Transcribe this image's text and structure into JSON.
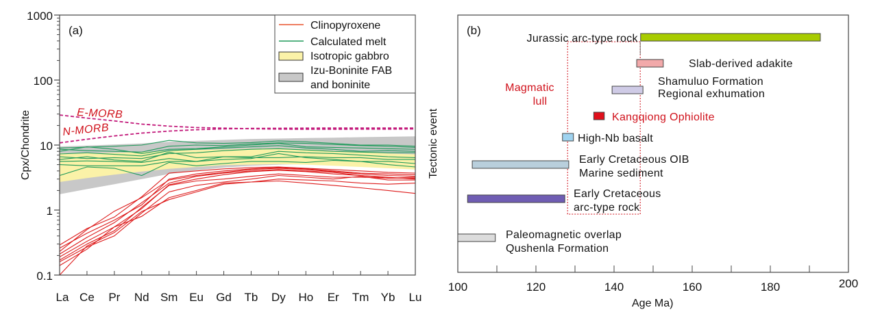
{
  "chart_data": [
    {
      "id": "a",
      "type": "line",
      "panel_label": "(a)",
      "title": "",
      "xlabel": "",
      "ylabel": "Cpx/Chondrite",
      "yscale": "log",
      "ylim": [
        0.1,
        1000
      ],
      "yticks": [
        0.1,
        1,
        10,
        100,
        1000
      ],
      "ytick_labels": [
        "0.1",
        "1",
        "10",
        "100",
        "1000"
      ],
      "grid": false,
      "legend_position": "top-right",
      "categories": [
        "La",
        "Ce",
        "Pr",
        "Nd",
        "Sm",
        "Eu",
        "Gd",
        "Tb",
        "Dy",
        "Ho",
        "Er",
        "Tm",
        "Yb",
        "Lu"
      ],
      "legend": [
        {
          "label": "Clinopyroxene",
          "kind": "line",
          "color": "#e8502a"
        },
        {
          "label": "Calculated melt",
          "kind": "line",
          "color": "#1e9a5a"
        },
        {
          "label": "Isotropic gabbro",
          "kind": "box",
          "color": "#fbf2a8"
        },
        {
          "label": "Izu-Boninite FAB",
          "label2": "and boninite",
          "kind": "box",
          "color": "#c8c8c8"
        }
      ],
      "bands": [
        {
          "name": "Izu-Boninite FAB and boninite",
          "color": "#c8c8c8",
          "upper": [
            9.5,
            9.8,
            10.2,
            10.6,
            11.2,
            11.6,
            12.0,
            12.4,
            12.6,
            12.8,
            13.0,
            13.2,
            13.4,
            13.6
          ],
          "lower": [
            1.75,
            2.1,
            2.5,
            3.0,
            3.6,
            4.1,
            4.5,
            4.8,
            5.0,
            5.1,
            5.1,
            5.1,
            5.1,
            5.1
          ]
        },
        {
          "name": "Isotropic gabbro",
          "color": "#fbf2a8",
          "upper": [
            7.5,
            7.5,
            7.6,
            7.8,
            8.2,
            8.4,
            8.6,
            8.8,
            9.0,
            8.6,
            8.2,
            7.8,
            7.4,
            7.2
          ],
          "lower": [
            2.7,
            3.1,
            3.5,
            3.9,
            4.3,
            4.6,
            4.9,
            5.0,
            5.1,
            5.0,
            4.8,
            4.6,
            4.4,
            4.2
          ]
        }
      ],
      "reference_lines": [
        {
          "name": "E-MORB",
          "color": "#c2187a",
          "dashed": true,
          "values": [
            29,
            26,
            23.5,
            21,
            19.5,
            18.6,
            18.2,
            17.8,
            17.6,
            17.5,
            17.5,
            17.6,
            17.6,
            17.7
          ]
        },
        {
          "name": "N-MORB",
          "color": "#c2187a",
          "dashed": true,
          "values": [
            10.8,
            12.3,
            13.8,
            15.3,
            16.4,
            17.2,
            17.7,
            18.0,
            18.1,
            18.2,
            18.3,
            18.3,
            18.3,
            18.3
          ]
        }
      ],
      "series": [
        {
          "name": "Calculated melt",
          "color": "#1e9a5a",
          "lines": [
            [
              9.0,
              9.3,
              9.6,
              10.0,
              11.8,
              10.8,
              10.6,
              10.9,
              11.6,
              11.2,
              10.6,
              10.0,
              10.0,
              9.6
            ],
            [
              8.6,
              8.2,
              8.0,
              7.8,
              9.6,
              10.0,
              9.8,
              10.4,
              10.8,
              10.6,
              10.2,
              9.8,
              9.6,
              9.2
            ],
            [
              8.0,
              9.4,
              8.6,
              7.4,
              8.6,
              8.8,
              9.4,
              10.0,
              10.6,
              9.4,
              9.2,
              9.0,
              8.8,
              8.6
            ],
            [
              7.3,
              7.6,
              7.2,
              6.8,
              8.2,
              8.6,
              9.0,
              9.4,
              9.8,
              9.0,
              8.6,
              8.0,
              8.2,
              8.0
            ],
            [
              6.6,
              6.2,
              6.4,
              6.2,
              7.4,
              7.6,
              8.2,
              8.6,
              8.8,
              8.4,
              8.0,
              7.8,
              7.6,
              7.6
            ],
            [
              6.0,
              6.6,
              5.9,
              5.6,
              7.8,
              6.4,
              6.6,
              6.6,
              8.0,
              7.6,
              7.4,
              7.0,
              6.6,
              6.4
            ],
            [
              5.6,
              5.7,
              5.6,
              5.4,
              6.2,
              5.6,
              6.6,
              6.4,
              6.4,
              6.6,
              6.4,
              6.4,
              6.0,
              6.0
            ],
            [
              5.0,
              4.8,
              4.8,
              4.8,
              5.6,
              5.6,
              6.0,
              6.2,
              7.4,
              6.4,
              6.0,
              5.6,
              5.0,
              4.6
            ],
            [
              3.4,
              4.6,
              4.4,
              3.4,
              5.4,
              4.8,
              5.2,
              5.6,
              5.6,
              5.4,
              5.8,
              5.6,
              5.6,
              5.2
            ]
          ]
        },
        {
          "name": "Clinopyroxene",
          "color": "#dd1a1a",
          "lines": [
            [
              0.29,
              0.52,
              0.78,
              1.6,
              3.7,
              4.0,
              4.3,
              4.5,
              4.6,
              4.4,
              4.2,
              4.0,
              3.8,
              3.7
            ],
            [
              0.26,
              0.44,
              0.7,
              1.2,
              3.0,
              3.6,
              4.0,
              4.3,
              4.5,
              4.3,
              4.0,
              3.7,
              3.6,
              3.5
            ],
            [
              0.23,
              0.5,
              0.96,
              1.55,
              2.9,
              3.4,
              3.8,
              4.2,
              4.4,
              4.2,
              3.9,
              3.6,
              3.4,
              3.3
            ],
            [
              0.21,
              0.38,
              0.64,
              1.3,
              2.6,
              3.3,
              3.7,
              4.0,
              4.2,
              4.0,
              3.8,
              3.4,
              3.2,
              3.0
            ],
            [
              0.19,
              0.33,
              0.55,
              1.05,
              2.45,
              3.0,
              3.5,
              3.9,
              4.1,
              3.9,
              3.6,
              3.4,
              3.1,
              3.2
            ],
            [
              0.17,
              0.3,
              0.48,
              1.1,
              2.4,
              2.8,
              3.0,
              3.3,
              3.6,
              3.4,
              3.2,
              3.2,
              3.1,
              3.1
            ],
            [
              0.16,
              0.27,
              0.4,
              0.9,
              1.9,
              2.4,
              2.7,
              3.0,
              3.4,
              3.2,
              3.0,
              3.3,
              2.9,
              2.9
            ],
            [
              0.14,
              0.25,
              0.55,
              0.8,
              1.55,
              2.0,
              2.6,
              2.7,
              3.0,
              2.9,
              2.8,
              2.6,
              2.5,
              2.6
            ],
            [
              0.1,
              0.28,
              0.45,
              0.95,
              1.45,
              1.9,
              2.5,
              2.7,
              2.8,
              2.6,
              2.4,
              2.2,
              2.0,
              1.8
            ]
          ]
        }
      ],
      "annotations": [
        "E-MORB",
        "N-MORB"
      ]
    },
    {
      "id": "b",
      "type": "bar",
      "orientation": "horizontal",
      "panel_label": "(b)",
      "title": "",
      "xlabel": "Age Ma)",
      "ylabel": "Tectonic event",
      "xlim": [
        100,
        200
      ],
      "xticks": [
        100,
        120,
        140,
        160,
        180,
        200
      ],
      "xtick_labels": [
        "100",
        "120",
        "140",
        "160",
        "180",
        "200"
      ],
      "xminor_ticks": [
        110,
        130,
        150,
        170,
        190
      ],
      "grid": false,
      "events": [
        {
          "label": "Jurassic  arc-type rock",
          "start": 146.8,
          "end": 192.8,
          "color": "#a8cc00",
          "label_side": "left",
          "label_color": "#111111"
        },
        {
          "label": "Slab-derived adakite",
          "start": 145.8,
          "end": 152.6,
          "color": "#f2a9aa",
          "label_side": "right",
          "label_color": "#111111"
        },
        {
          "label": "Shamuluo Formation",
          "label2": "Regional exhumation",
          "start": 139.5,
          "end": 147.4,
          "color": "#cfcbe6",
          "label_side": "right",
          "label_color": "#111111"
        },
        {
          "label": "Kangqiong Ophiolite",
          "start": 134.8,
          "end": 137.5,
          "color": "#e0101c",
          "label_side": "right",
          "label_color": "#d0101a"
        },
        {
          "label": "High-Nb basalt",
          "start": 126.8,
          "end": 129.6,
          "color": "#9fd3f0",
          "label_side": "right",
          "label_color": "#111111"
        },
        {
          "label": "Early Cretaceous OIB",
          "label2": "Marine sediment",
          "start": 103.7,
          "end": 128.4,
          "color": "#b9cfdc",
          "label_side": "right",
          "label_color": "#111111"
        },
        {
          "label": "Early Cretaceous",
          "label2": "arc-type rock",
          "start": 102.5,
          "end": 127.4,
          "color": "#6f5db3",
          "label_side": "right",
          "label_color": "#111111"
        },
        {
          "label": "Paleomagnetic overlap",
          "label2": "Qushenla Formation",
          "start": 100.0,
          "end": 109.6,
          "color": "#dcdcdc",
          "label_side": "right",
          "label_color": "#111111"
        }
      ],
      "highlight_box": {
        "label": "Magmatic",
        "label2": "lull",
        "start": 128.1,
        "end": 146.7,
        "color": "#d0101a",
        "dashed": true
      }
    }
  ]
}
